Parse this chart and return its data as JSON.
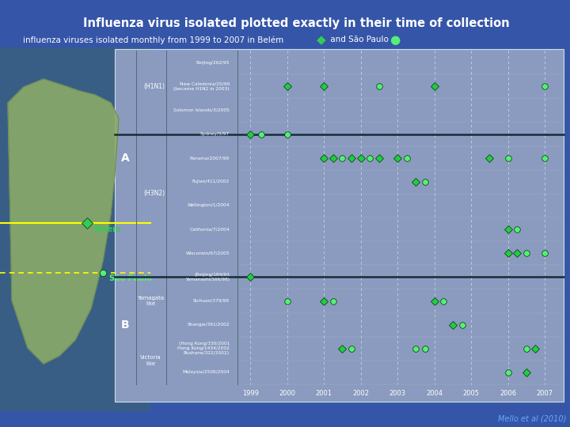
{
  "title": "Influenza virus isolated plotted exactly in their time of collection",
  "subtitle_left": "influenza viruses isolated monthly from 1999 to 2007 in Belém",
  "subtitle_diamond": "◆",
  "subtitle_mid": " and São Paulo ",
  "subtitle_circle": "●",
  "bg_color": "#3555A8",
  "plot_bg_color": "#8A9BBF",
  "map_bg_color": "#3A6080",
  "title_color": "white",
  "subtitle_color": "white",
  "belem_color": "#33CC55",
  "saopaulo_color": "#55EE77",
  "citation_color": "#66AAFF",
  "xticks": [
    1999,
    2000,
    2001,
    2002,
    2003,
    2004,
    2005,
    2006,
    2007
  ],
  "xmin": 1998.65,
  "xmax": 2007.45,
  "row_labels": [
    "Beijing/262/95",
    "New Caledonia/20/99\n(became H1N2 in 2003)",
    "Solomon Islands/3/2005",
    "Sydney/5/97",
    "Panama/2007/99",
    "Fujian/411/2002",
    "Wellington/1/2004",
    "California/7/2004",
    "Wisconsin/67/2005",
    "(Beijing/184/93\nYamanashi/166/98)",
    "Sichuan/379/99",
    "Shangai/361/2002",
    "(Hong Kong/330/2001\nHong Kong/1434/2002\nBushane/322/2002)",
    "Malaysia/2506/2004"
  ],
  "data_points": [
    {
      "row": 1,
      "year": 2000.0,
      "marker": "D",
      "color": "#22CC44"
    },
    {
      "row": 1,
      "year": 2001.0,
      "marker": "D",
      "color": "#22CC44"
    },
    {
      "row": 1,
      "year": 2002.5,
      "marker": "o",
      "color": "#55EE77"
    },
    {
      "row": 1,
      "year": 2004.0,
      "marker": "D",
      "color": "#22CC44"
    },
    {
      "row": 1,
      "year": 2007.0,
      "marker": "o",
      "color": "#55EE77"
    },
    {
      "row": 3,
      "year": 1999.0,
      "marker": "D",
      "color": "#22CC44"
    },
    {
      "row": 3,
      "year": 1999.3,
      "marker": "o",
      "color": "#55EE77"
    },
    {
      "row": 3,
      "year": 2000.0,
      "marker": "o",
      "color": "#55EE77"
    },
    {
      "row": 4,
      "year": 2001.0,
      "marker": "D",
      "color": "#22CC44"
    },
    {
      "row": 4,
      "year": 2001.25,
      "marker": "D",
      "color": "#22CC44"
    },
    {
      "row": 4,
      "year": 2001.5,
      "marker": "o",
      "color": "#55EE77"
    },
    {
      "row": 4,
      "year": 2001.75,
      "marker": "D",
      "color": "#22CC44"
    },
    {
      "row": 4,
      "year": 2002.0,
      "marker": "D",
      "color": "#22CC44"
    },
    {
      "row": 4,
      "year": 2002.25,
      "marker": "o",
      "color": "#55EE77"
    },
    {
      "row": 4,
      "year": 2002.5,
      "marker": "D",
      "color": "#22CC44"
    },
    {
      "row": 4,
      "year": 2003.0,
      "marker": "D",
      "color": "#22CC44"
    },
    {
      "row": 4,
      "year": 2003.25,
      "marker": "o",
      "color": "#55EE77"
    },
    {
      "row": 4,
      "year": 2005.5,
      "marker": "D",
      "color": "#22CC44"
    },
    {
      "row": 4,
      "year": 2006.0,
      "marker": "o",
      "color": "#55EE77"
    },
    {
      "row": 4,
      "year": 2007.0,
      "marker": "o",
      "color": "#55EE77"
    },
    {
      "row": 5,
      "year": 2003.5,
      "marker": "D",
      "color": "#22CC44"
    },
    {
      "row": 5,
      "year": 2003.75,
      "marker": "o",
      "color": "#55EE77"
    },
    {
      "row": 7,
      "year": 2006.0,
      "marker": "D",
      "color": "#22CC44"
    },
    {
      "row": 7,
      "year": 2006.25,
      "marker": "o",
      "color": "#55EE77"
    },
    {
      "row": 8,
      "year": 2006.0,
      "marker": "D",
      "color": "#22CC44"
    },
    {
      "row": 8,
      "year": 2006.25,
      "marker": "D",
      "color": "#22CC44"
    },
    {
      "row": 8,
      "year": 2006.5,
      "marker": "o",
      "color": "#55EE77"
    },
    {
      "row": 8,
      "year": 2007.0,
      "marker": "o",
      "color": "#55EE77"
    },
    {
      "row": 9,
      "year": 1999.0,
      "marker": "D",
      "color": "#22CC44"
    },
    {
      "row": 10,
      "year": 2000.0,
      "marker": "o",
      "color": "#55EE77"
    },
    {
      "row": 10,
      "year": 2001.0,
      "marker": "D",
      "color": "#22CC44"
    },
    {
      "row": 10,
      "year": 2001.25,
      "marker": "o",
      "color": "#55EE77"
    },
    {
      "row": 10,
      "year": 2004.0,
      "marker": "D",
      "color": "#22CC44"
    },
    {
      "row": 10,
      "year": 2004.25,
      "marker": "o",
      "color": "#55EE77"
    },
    {
      "row": 11,
      "year": 2004.5,
      "marker": "D",
      "color": "#22CC44"
    },
    {
      "row": 11,
      "year": 2004.75,
      "marker": "o",
      "color": "#55EE77"
    },
    {
      "row": 12,
      "year": 2001.5,
      "marker": "D",
      "color": "#22CC44"
    },
    {
      "row": 12,
      "year": 2001.75,
      "marker": "o",
      "color": "#55EE77"
    },
    {
      "row": 12,
      "year": 2003.5,
      "marker": "o",
      "color": "#55EE77"
    },
    {
      "row": 12,
      "year": 2003.75,
      "marker": "o",
      "color": "#55EE77"
    },
    {
      "row": 12,
      "year": 2006.5,
      "marker": "o",
      "color": "#55EE77"
    },
    {
      "row": 12,
      "year": 2006.75,
      "marker": "D",
      "color": "#22CC44"
    },
    {
      "row": 13,
      "year": 2006.0,
      "marker": "o",
      "color": "#55EE77"
    },
    {
      "row": 13,
      "year": 2006.5,
      "marker": "D",
      "color": "#22CC44"
    }
  ],
  "citation": "Mello et al (2010)"
}
